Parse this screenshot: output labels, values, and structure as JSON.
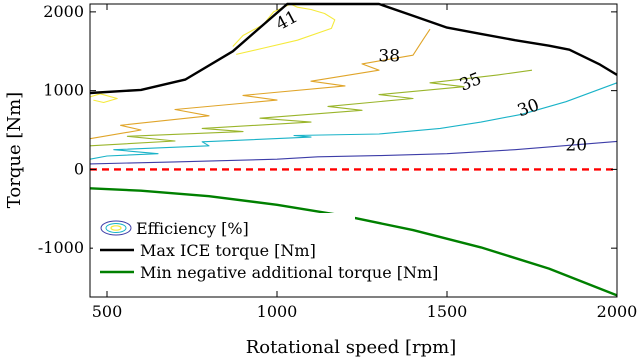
{
  "chart_data": {
    "type": "line",
    "title": "",
    "xlabel": "Rotational speed [rpm]",
    "ylabel": "Torque [Nm]",
    "xlim": [
      450,
      2000
    ],
    "ylim": [
      -1620,
      2100
    ],
    "xticks": [
      500,
      1000,
      1500,
      2000
    ],
    "yticks": [
      -1000,
      0,
      1000,
      2000
    ],
    "ytick_labels": [
      "-1000",
      "0",
      "1000",
      "2000"
    ],
    "grid": false,
    "legend_position": "bottom-left",
    "series": [
      {
        "name": "Max ICE torque [Nm]",
        "color": "#000000",
        "style": "solid",
        "x": [
          450,
          600,
          730,
          870,
          950,
          1030,
          1150,
          1300,
          1400,
          1500,
          1600,
          1700,
          1800,
          1860,
          1950,
          2000
        ],
        "y": [
          970,
          1010,
          1140,
          1500,
          1800,
          2100,
          2100,
          2100,
          1950,
          1800,
          1720,
          1640,
          1570,
          1520,
          1330,
          1200
        ]
      },
      {
        "name": "Min negative additional torque [Nm]",
        "color": "#008000",
        "style": "solid",
        "x": [
          450,
          600,
          800,
          1000,
          1200,
          1400,
          1600,
          1800,
          2000
        ],
        "y": [
          -240,
          -270,
          -340,
          -450,
          -590,
          -770,
          -990,
          -1260,
          -1600
        ]
      },
      {
        "name": "",
        "color": "#ff0000",
        "style": "dashed",
        "x": [
          450,
          2000
        ],
        "y": [
          0,
          0
        ]
      }
    ],
    "contours": {
      "legend_label": "Efficiency [%]",
      "levels": [
        {
          "level": 20,
          "label": "20",
          "color": "#3d3da8",
          "x": [
            450,
            700,
            1000,
            1120,
            1300,
            1500,
            1700,
            1900,
            2000
          ],
          "y": [
            70,
            95,
            130,
            160,
            175,
            200,
            250,
            320,
            355
          ]
        },
        {
          "level": 30,
          "label": "30",
          "color": "#1ab3c8",
          "x": [
            450,
            500,
            650,
            520,
            800,
            780,
            1100,
            1050,
            1300,
            1480,
            1600,
            1720,
            1850,
            2000
          ],
          "y": [
            130,
            170,
            200,
            250,
            300,
            350,
            410,
            430,
            450,
            520,
            600,
            700,
            860,
            1100
          ]
        },
        {
          "level": 35,
          "label": "35",
          "color": "#9ab52b",
          "x": [
            450,
            700,
            560,
            900,
            780,
            1100,
            950,
            1250,
            1150,
            1400,
            1300,
            1550,
            1450,
            1650,
            1750
          ],
          "y": [
            300,
            360,
            420,
            480,
            520,
            600,
            650,
            750,
            800,
            900,
            950,
            1050,
            1100,
            1200,
            1260
          ]
        },
        {
          "level": 38,
          "label": "38",
          "color": "#e0a52a",
          "x": [
            450,
            600,
            540,
            800,
            700,
            1000,
            900,
            1200,
            1100,
            1300,
            1250,
            1400,
            1430,
            1450
          ],
          "y": [
            390,
            500,
            560,
            680,
            760,
            880,
            940,
            1060,
            1120,
            1260,
            1340,
            1450,
            1650,
            1780
          ]
        },
        {
          "level": 41,
          "label": "41",
          "color": "#f5ea3c",
          "x": [
            880,
            960,
            1060,
            1160,
            1170,
            1140,
            1100,
            1060,
            1040,
            990,
            960,
            900,
            870
          ],
          "y": [
            1460,
            1540,
            1640,
            1790,
            1900,
            1980,
            2030,
            2060,
            2100,
            2000,
            1840,
            1700,
            1560
          ]
        },
        {
          "level": 41,
          "label": "",
          "color": "#f5ea3c",
          "x": [
            450,
            480,
            530,
            490,
            460
          ],
          "y": [
            920,
            960,
            900,
            850,
            880
          ]
        }
      ]
    }
  }
}
